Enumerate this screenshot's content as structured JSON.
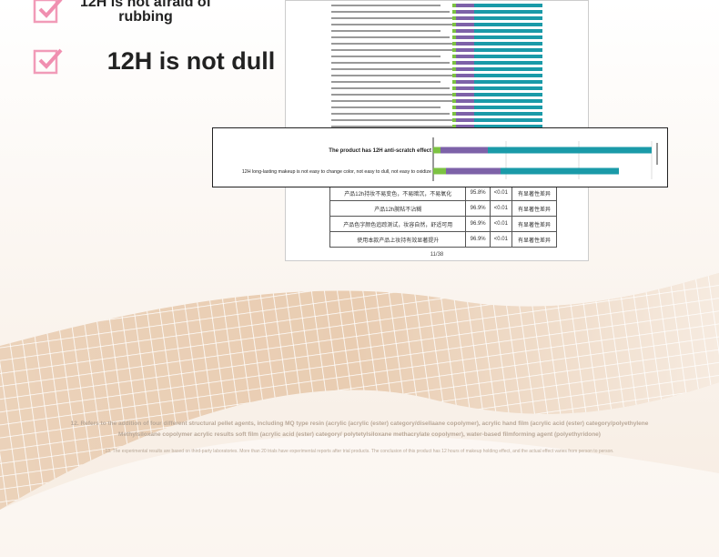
{
  "features": [
    {
      "text": "12H is not afraid of rubbing"
    },
    {
      "text": "12H is not dull"
    }
  ],
  "document": {
    "rows": [
      [
        "产品12h持妆不易变色，不易暗沉，不易氧化",
        "95.8%",
        "<0.01",
        "有显著性差异"
      ],
      [
        "产品12h腕粘不沾糊",
        "96.9%",
        "<0.01",
        "有显著性差异"
      ],
      [
        "产品色字颜色追踪测试，妆容自然，舒适可用",
        "96.9%",
        "<0.01",
        "有显著性差异"
      ],
      [
        "使用本款产品上妆持有效显著提升",
        "96.9%",
        "<0.01",
        "有显著性差异"
      ]
    ],
    "page": "11/38"
  },
  "inset": {
    "rows": [
      "The product has 12H anti-scratch effect",
      "12H long-lasting makeup is not easy to change color, not easy to dull, not easy to oxidize"
    ]
  },
  "footnotes": [
    "12. Refers to the addition of four different structural pellet agents, including MQ type resin (acrylic (acrylic (ester) category/disellaane copolymer), acrylic hand film (acrylic acid (ester) category/polyethylene",
    "Methylsiloxane copolymer acrylic results soft film (acrylic acid (ester) category/ polytetylsiloxane methacrylate copolymer), water-based filmforming agent (polyethyridone)",
    "13. The experimental results are based on third-party laboratories. More than 20 trials have experimental reports after trial products. The conclusion of this product has 12 hours of makeup holding effect, and the actual effect varies from person to person."
  ]
}
